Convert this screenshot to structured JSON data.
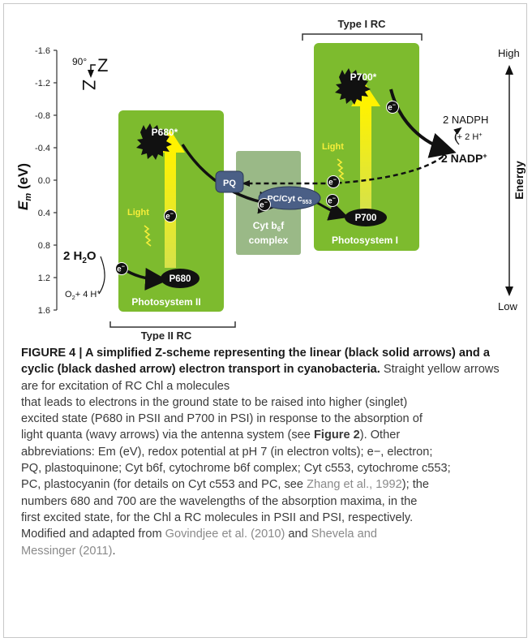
{
  "diagram": {
    "bracket_top": "Type I RC",
    "bracket_bottom": "Type II RC",
    "axis_label": "Em (eV)",
    "axis_label_main": "E",
    "axis_label_sub": "m",
    "axis_label_unit": " (eV)",
    "y_ticks": [
      "-1.6",
      "-1.2",
      "-0.8",
      "-0.4",
      "0.0",
      "0.4",
      "0.8",
      "1.2",
      "1.6"
    ],
    "z_rotation": "90°",
    "z_letter": "Z",
    "energy_label": "Energy",
    "energy_high": "High",
    "energy_low": "Low",
    "ps2_label": "Photosystem II",
    "ps1_label": "Photosystem I",
    "cyt_label_line1": "Cyt b",
    "cyt_label_sub": "6",
    "cyt_label_tail": "f",
    "cyt_label_line2": "complex",
    "p680_star": "P680*",
    "p680": "P680",
    "p700_star": "P700*",
    "p700": "P700",
    "pq": "PQ",
    "pc_cyt": "PC/Cyt c",
    "pc_cyt_sub": "553",
    "electron": "e",
    "electron_sup": "−",
    "light": "Light",
    "water": "2 H",
    "water_sub": "2",
    "water_tail": "O",
    "oxygen": "O",
    "oxygen_sub": "2",
    "oxygen_tail": "+ 4 H",
    "oxygen_sup": "+",
    "nadph": "2 NADPH",
    "plus_2h": "+ 2 H",
    "plus_2h_sup": "+",
    "nadp": "2 NADP",
    "nadp_sup": "+"
  },
  "caption": {
    "lead": "FIGURE 4 | A simplified Z-scheme representing the linear (black solid arrows) and a cyclic (black dashed arrow) electron transport in cyanobacteria.",
    "line1": " Straight yellow arrows are for excitation of RC Chl a molecules",
    "line2": "that leads to electrons in the ground state to be raised into higher (singlet)",
    "line3": "excited state (P680 in PSII and P700 in PSI) in response to the absorption of",
    "line4a": "light quanta (wavy arrows) via the antenna system (see ",
    "line4_ref": "Figure 2",
    "line4b": "). Other",
    "line5": "abbreviations: Em (eV), redox potential at pH 7 (in electron volts); e−, electron;",
    "line6": "PQ, plastoquinone; Cyt b6f, cytochrome b6f complex; Cyt c553, cytochrome c553;",
    "line7a": "PC, plastocyanin (for details on Cyt c553 and PC, see ",
    "line7_ref": "Zhang et al., 1992",
    "line7b": "); the",
    "line8": "numbers 680 and 700 are the wavelengths of the absorption maxima, in the",
    "line9": "first excited state, for the Chl a RC molecules in PSII and PSI, respectively.",
    "line10a": "Modified and adapted from ",
    "line10_ref1": "Govindjee et al. (2010)",
    "line10b": " and ",
    "line10_ref2": "Shevela and",
    "line11_ref2": "Messinger (2011)",
    "line11b": "."
  }
}
